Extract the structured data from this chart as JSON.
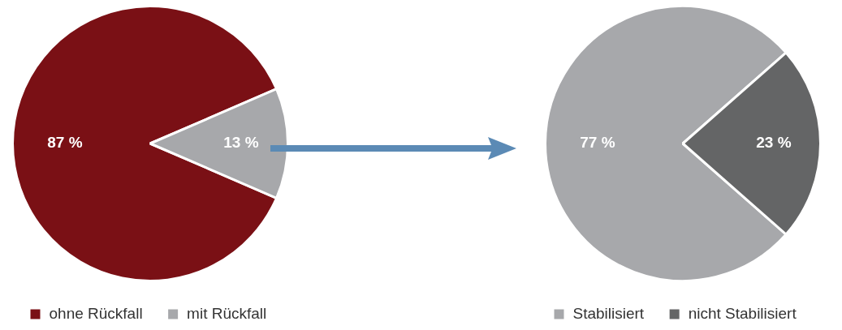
{
  "chart_data": [
    {
      "type": "pie",
      "categories": [
        "ohne Rückfall",
        "mit Rückfall"
      ],
      "values": [
        87,
        13
      ],
      "colors": [
        "#7a1015",
        "#a7a8ab"
      ],
      "value_labels": [
        "87 %",
        "13 %"
      ],
      "legend": "bottom"
    },
    {
      "type": "pie",
      "categories": [
        "Stabilisiert",
        "nicht Stabilisiert"
      ],
      "values": [
        77,
        23
      ],
      "colors": [
        "#a7a8ab",
        "#646566"
      ],
      "value_labels": [
        "77 %",
        "23 %"
      ],
      "legend": "bottom"
    }
  ]
}
